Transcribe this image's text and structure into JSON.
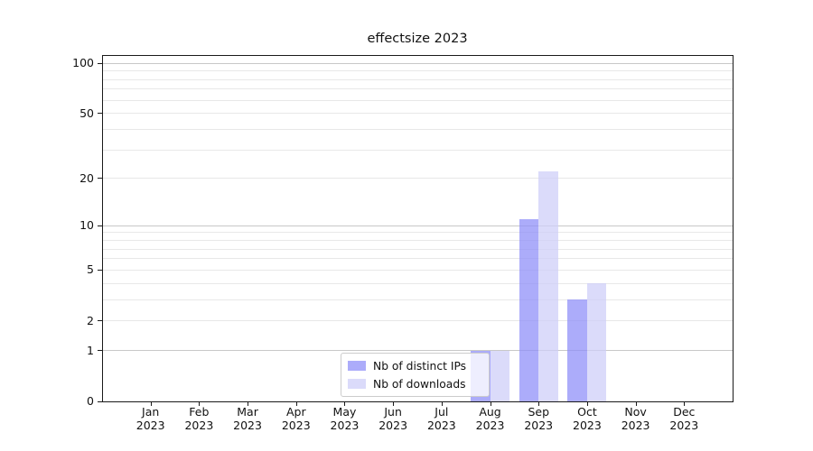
{
  "title": "effectsize 2023",
  "legend": {
    "items": [
      {
        "label": "Nb of distinct IPs"
      },
      {
        "label": "Nb of downloads"
      }
    ]
  },
  "chart_data": {
    "type": "bar",
    "title": "effectsize 2023",
    "categories": [
      "Jan 2023",
      "Feb 2023",
      "Mar 2023",
      "Apr 2023",
      "May 2023",
      "Jun 2023",
      "Jul 2023",
      "Aug 2023",
      "Sep 2023",
      "Oct 2023",
      "Nov 2023",
      "Dec 2023"
    ],
    "month_labels": [
      "Jan",
      "Feb",
      "Mar",
      "Apr",
      "May",
      "Jun",
      "Jul",
      "Aug",
      "Sep",
      "Oct",
      "Nov",
      "Dec"
    ],
    "year_label": "2023",
    "series": [
      {
        "name": "Nb of distinct IPs",
        "color": "#9090f8",
        "values": [
          0,
          0,
          0,
          0,
          0,
          0,
          0,
          1,
          11,
          3,
          0,
          0
        ]
      },
      {
        "name": "Nb of downloads",
        "color": "#cfcff8",
        "values": [
          0,
          0,
          0,
          0,
          0,
          0,
          0,
          1,
          22,
          4,
          0,
          0
        ]
      }
    ],
    "fill_opacity": 0.75,
    "xlabel": "",
    "ylabel": "",
    "yscale": "log1p",
    "ylim": [
      0,
      112
    ],
    "yticks_labeled": [
      0,
      1,
      2,
      5,
      10,
      20,
      50,
      100
    ],
    "grid_major_values": [
      1,
      10,
      100
    ],
    "grid_minor_values": [
      2,
      3,
      4,
      5,
      6,
      7,
      8,
      9,
      20,
      30,
      40,
      50,
      60,
      70,
      80,
      90
    ],
    "grid": "horizontal",
    "legend_position": "lower-center",
    "colors": {
      "axis": "#1a1a1a",
      "grid_major": "#c8c8c8",
      "grid_minor": "#e8e8e8",
      "background": "#ffffff"
    }
  }
}
